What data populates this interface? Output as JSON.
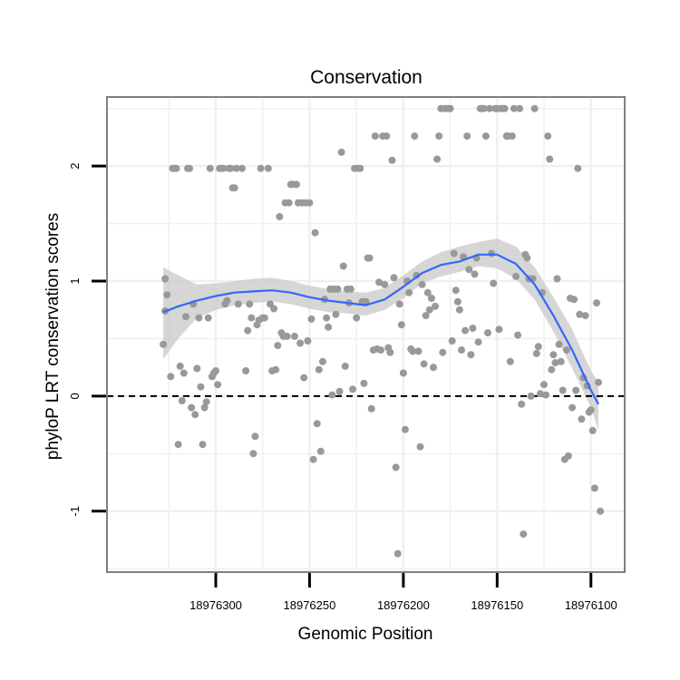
{
  "chart_data": {
    "type": "scatter",
    "title": "Conservation",
    "xlabel": "Genomic Position",
    "ylabel": "phyloP LRT conservation scores",
    "x_reversed": true,
    "xlim": [
      18976082,
      18976358
    ],
    "ylim": [
      -1.53,
      2.6
    ],
    "x_ticks": [
      18976300,
      18976250,
      18976200,
      18976150,
      18976100
    ],
    "x_tick_labels": [
      "18976300",
      "18976250",
      "18976200",
      "18976150",
      "18976100"
    ],
    "y_ticks": [
      -1,
      0,
      1,
      2
    ],
    "y_tick_labels": [
      "-1",
      "0",
      "1",
      "2"
    ],
    "grid": true,
    "reference_line": {
      "y": 0,
      "style": "dashed"
    },
    "colors": {
      "points": "#999999",
      "smooth_line": "#3366ff",
      "confidence_band": "#cccccc",
      "panel_border": "#808080",
      "grid": "#f0f0f0"
    },
    "series": [
      {
        "name": "phyloP score",
        "kind": "points",
        "points": [
          [
            18976328,
            0.45
          ],
          [
            18976327,
            0.74
          ],
          [
            18976327,
            1.02
          ],
          [
            18976326,
            0.88
          ],
          [
            18976324,
            0.17
          ],
          [
            18976323,
            1.98
          ],
          [
            18976322,
            1.98
          ],
          [
            18976321,
            1.98
          ],
          [
            18976320,
            -0.42
          ],
          [
            18976319,
            0.26
          ],
          [
            18976318,
            -0.04
          ],
          [
            18976317,
            0.2
          ],
          [
            18976316,
            0.69
          ],
          [
            18976315,
            1.98
          ],
          [
            18976314,
            1.98
          ],
          [
            18976313,
            -0.1
          ],
          [
            18976312,
            0.8
          ],
          [
            18976311,
            -0.16
          ],
          [
            18976310,
            0.24
          ],
          [
            18976309,
            0.68
          ],
          [
            18976308,
            0.08
          ],
          [
            18976307,
            -0.42
          ],
          [
            18976306,
            -0.1
          ],
          [
            18976305,
            -0.05
          ],
          [
            18976304,
            0.68
          ],
          [
            18976303,
            1.98
          ],
          [
            18976302,
            0.17
          ],
          [
            18976301,
            0.2
          ],
          [
            18976300,
            0.22
          ],
          [
            18976299,
            0.1
          ],
          [
            18976298,
            1.98
          ],
          [
            18976297,
            1.98
          ],
          [
            18976296,
            1.98
          ],
          [
            18976295,
            0.8
          ],
          [
            18976294,
            0.83
          ],
          [
            18976293,
            1.98
          ],
          [
            18976292,
            1.98
          ],
          [
            18976291,
            1.81
          ],
          [
            18976290,
            1.81
          ],
          [
            18976289,
            1.98
          ],
          [
            18976288,
            0.8
          ],
          [
            18976286,
            1.98
          ],
          [
            18976284,
            0.22
          ],
          [
            18976283,
            0.57
          ],
          [
            18976282,
            0.8
          ],
          [
            18976281,
            0.68
          ],
          [
            18976280,
            -0.5
          ],
          [
            18976279,
            -0.35
          ],
          [
            18976278,
            0.62
          ],
          [
            18976277,
            0.66
          ],
          [
            18976276,
            1.98
          ],
          [
            18976275,
            0.68
          ],
          [
            18976274,
            0.68
          ],
          [
            18976272,
            1.98
          ],
          [
            18976271,
            0.8
          ],
          [
            18976270,
            0.22
          ],
          [
            18976269,
            0.76
          ],
          [
            18976268,
            0.23
          ],
          [
            18976267,
            0.44
          ],
          [
            18976266,
            1.56
          ],
          [
            18976265,
            0.55
          ],
          [
            18976264,
            0.52
          ],
          [
            18976263,
            1.68
          ],
          [
            18976262,
            0.52
          ],
          [
            18976261,
            1.68
          ],
          [
            18976260,
            1.84
          ],
          [
            18976259,
            1.84
          ],
          [
            18976258,
            0.52
          ],
          [
            18976257,
            1.84
          ],
          [
            18976256,
            1.68
          ],
          [
            18976255,
            0.46
          ],
          [
            18976254,
            1.68
          ],
          [
            18976253,
            0.16
          ],
          [
            18976252,
            1.68
          ],
          [
            18976251,
            0.48
          ],
          [
            18976250,
            1.68
          ],
          [
            18976249,
            0.67
          ],
          [
            18976248,
            -0.55
          ],
          [
            18976247,
            1.42
          ],
          [
            18976246,
            -0.24
          ],
          [
            18976245,
            0.23
          ],
          [
            18976244,
            -0.48
          ],
          [
            18976243,
            0.3
          ],
          [
            18976242,
            0.84
          ],
          [
            18976241,
            0.68
          ],
          [
            18976240,
            0.6
          ],
          [
            18976239,
            0.93
          ],
          [
            18976238,
            0.01
          ],
          [
            18976237,
            0.93
          ],
          [
            18976236,
            0.71
          ],
          [
            18976235,
            0.93
          ],
          [
            18976234,
            0.04
          ],
          [
            18976233,
            2.12
          ],
          [
            18976232,
            1.13
          ],
          [
            18976231,
            0.26
          ],
          [
            18976230,
            0.93
          ],
          [
            18976229,
            0.81
          ],
          [
            18976228,
            0.93
          ],
          [
            18976227,
            0.06
          ],
          [
            18976226,
            1.98
          ],
          [
            18976225,
            0.68
          ],
          [
            18976224,
            1.98
          ],
          [
            18976223,
            1.98
          ],
          [
            18976222,
            0.82
          ],
          [
            18976221,
            0.11
          ],
          [
            18976220,
            0.82
          ],
          [
            18976219,
            1.2
          ],
          [
            18976218,
            1.2
          ],
          [
            18976217,
            -0.11
          ],
          [
            18976216,
            0.4
          ],
          [
            18976215,
            2.26
          ],
          [
            18976214,
            0.41
          ],
          [
            18976213,
            0.99
          ],
          [
            18976212,
            0.4
          ],
          [
            18976211,
            2.26
          ],
          [
            18976210,
            0.97
          ],
          [
            18976209,
            2.26
          ],
          [
            18976208,
            0.42
          ],
          [
            18976207,
            0.38
          ],
          [
            18976206,
            2.05
          ],
          [
            18976205,
            1.03
          ],
          [
            18976204,
            -0.62
          ],
          [
            18976203,
            -1.37
          ],
          [
            18976202,
            0.8
          ],
          [
            18976201,
            0.62
          ],
          [
            18976200,
            0.2
          ],
          [
            18976199,
            -0.29
          ],
          [
            18976198,
            1.0
          ],
          [
            18976197,
            0.9
          ],
          [
            18976196,
            0.41
          ],
          [
            18976195,
            0.39
          ],
          [
            18976194,
            2.26
          ],
          [
            18976193,
            1.05
          ],
          [
            18976192,
            0.39
          ],
          [
            18976191,
            -0.44
          ],
          [
            18976190,
            0.97
          ],
          [
            18976189,
            0.28
          ],
          [
            18976188,
            0.7
          ],
          [
            18976187,
            0.9
          ],
          [
            18976186,
            0.75
          ],
          [
            18976185,
            0.85
          ],
          [
            18976184,
            0.25
          ],
          [
            18976183,
            0.78
          ],
          [
            18976182,
            2.06
          ],
          [
            18976181,
            2.26
          ],
          [
            18976180,
            2.5
          ],
          [
            18976179,
            0.38
          ],
          [
            18976178,
            2.5
          ],
          [
            18976177,
            2.5
          ],
          [
            18976176,
            2.5
          ],
          [
            18976175,
            2.5
          ],
          [
            18976174,
            0.48
          ],
          [
            18976173,
            1.24
          ],
          [
            18976172,
            0.92
          ],
          [
            18976171,
            0.82
          ],
          [
            18976170,
            0.75
          ],
          [
            18976169,
            0.4
          ],
          [
            18976168,
            1.21
          ],
          [
            18976167,
            0.57
          ],
          [
            18976166,
            2.26
          ],
          [
            18976165,
            1.1
          ],
          [
            18976164,
            0.36
          ],
          [
            18976163,
            0.59
          ],
          [
            18976162,
            1.06
          ],
          [
            18976161,
            1.2
          ],
          [
            18976160,
            0.47
          ],
          [
            18976159,
            2.5
          ],
          [
            18976158,
            2.5
          ],
          [
            18976157,
            2.5
          ],
          [
            18976156,
            2.26
          ],
          [
            18976155,
            0.55
          ],
          [
            18976154,
            2.5
          ],
          [
            18976153,
            1.24
          ],
          [
            18976152,
            0.98
          ],
          [
            18976151,
            2.5
          ],
          [
            18976150,
            2.5
          ],
          [
            18976149,
            0.58
          ],
          [
            18976148,
            2.5
          ],
          [
            18976147,
            2.5
          ],
          [
            18976146,
            2.5
          ],
          [
            18976145,
            2.26
          ],
          [
            18976144,
            2.26
          ],
          [
            18976143,
            0.3
          ],
          [
            18976142,
            2.26
          ],
          [
            18976141,
            2.5
          ],
          [
            18976140,
            1.04
          ],
          [
            18976139,
            0.53
          ],
          [
            18976138,
            2.5
          ],
          [
            18976137,
            -0.07
          ],
          [
            18976136,
            -1.2
          ],
          [
            18976135,
            1.23
          ],
          [
            18976134,
            1.2
          ],
          [
            18976133,
            1.02
          ],
          [
            18976132,
            0.0
          ],
          [
            18976131,
            1.02
          ],
          [
            18976130,
            2.5
          ],
          [
            18976129,
            0.37
          ],
          [
            18976128,
            0.43
          ],
          [
            18976127,
            0.02
          ],
          [
            18976126,
            0.9
          ],
          [
            18976125,
            0.1
          ],
          [
            18976124,
            0.01
          ],
          [
            18976123,
            2.26
          ],
          [
            18976122,
            2.06
          ],
          [
            18976121,
            0.23
          ],
          [
            18976120,
            0.36
          ],
          [
            18976119,
            0.29
          ],
          [
            18976118,
            1.02
          ],
          [
            18976117,
            0.45
          ],
          [
            18976116,
            0.3
          ],
          [
            18976115,
            0.05
          ],
          [
            18976114,
            -0.55
          ],
          [
            18976113,
            0.4
          ],
          [
            18976112,
            -0.52
          ],
          [
            18976111,
            0.85
          ],
          [
            18976110,
            -0.1
          ],
          [
            18976109,
            0.84
          ],
          [
            18976108,
            0.05
          ],
          [
            18976107,
            1.98
          ],
          [
            18976106,
            0.71
          ],
          [
            18976105,
            -0.2
          ],
          [
            18976104,
            0.16
          ],
          [
            18976103,
            0.7
          ],
          [
            18976102,
            0.09
          ],
          [
            18976101,
            -0.14
          ],
          [
            18976100,
            -0.12
          ],
          [
            18976099,
            -0.3
          ],
          [
            18976098,
            -0.8
          ],
          [
            18976097,
            0.81
          ],
          [
            18976096,
            0.12
          ],
          [
            18976095,
            -1.0
          ]
        ]
      },
      {
        "name": "smooth fit",
        "kind": "loess",
        "x": [
          18976328,
          18976320,
          18976310,
          18976300,
          18976290,
          18976280,
          18976270,
          18976260,
          18976250,
          18976240,
          18976230,
          18976220,
          18976210,
          18976200,
          18976190,
          18976180,
          18976170,
          18976160,
          18976150,
          18976140,
          18976130,
          18976120,
          18976110,
          18976100,
          18976096
        ],
        "y": [
          0.73,
          0.78,
          0.83,
          0.87,
          0.9,
          0.91,
          0.92,
          0.9,
          0.86,
          0.83,
          0.81,
          0.79,
          0.84,
          0.95,
          1.07,
          1.14,
          1.17,
          1.23,
          1.23,
          1.15,
          0.97,
          0.7,
          0.4,
          0.05,
          -0.07
        ],
        "lower": [
          0.32,
          0.5,
          0.68,
          0.75,
          0.79,
          0.81,
          0.82,
          0.8,
          0.76,
          0.73,
          0.72,
          0.7,
          0.75,
          0.85,
          0.98,
          1.04,
          1.08,
          1.13,
          1.11,
          1.02,
          0.84,
          0.56,
          0.24,
          -0.1,
          -0.3
        ],
        "upper": [
          1.12,
          1.05,
          0.97,
          0.98,
          1.0,
          1.02,
          1.03,
          1.0,
          0.96,
          0.93,
          0.91,
          0.9,
          0.94,
          1.05,
          1.17,
          1.25,
          1.3,
          1.34,
          1.37,
          1.3,
          1.12,
          0.86,
          0.58,
          0.22,
          0.12
        ]
      }
    ]
  }
}
